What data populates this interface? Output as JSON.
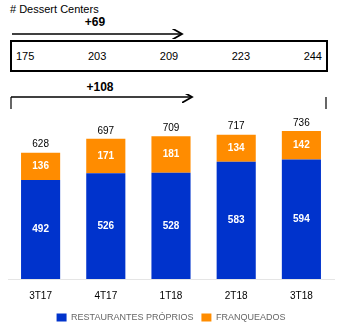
{
  "chart_data": [
    {
      "type": "table",
      "title": "# Dessert Centers",
      "values": [
        175,
        203,
        209,
        223,
        244
      ],
      "annotations": [
        "+69"
      ]
    },
    {
      "type": "bar",
      "stacked": true,
      "categories": [
        "3T17",
        "4T17",
        "1T18",
        "2T18",
        "3T18"
      ],
      "series": [
        {
          "name": "RESTAURANTES PRÓPRIOS",
          "color": "#0033cc",
          "values": [
            492,
            526,
            528,
            583,
            594
          ]
        },
        {
          "name": "FRANQUEADOS",
          "color": "#ff8c00",
          "values": [
            136,
            171,
            181,
            134,
            142
          ]
        }
      ],
      "totals": [
        628,
        697,
        709,
        717,
        736
      ],
      "ylim": [
        0,
        820
      ],
      "data_labels": true,
      "tick_labels": "x",
      "grid": false,
      "legend": "bottom",
      "annotations": [
        "+108"
      ]
    }
  ]
}
